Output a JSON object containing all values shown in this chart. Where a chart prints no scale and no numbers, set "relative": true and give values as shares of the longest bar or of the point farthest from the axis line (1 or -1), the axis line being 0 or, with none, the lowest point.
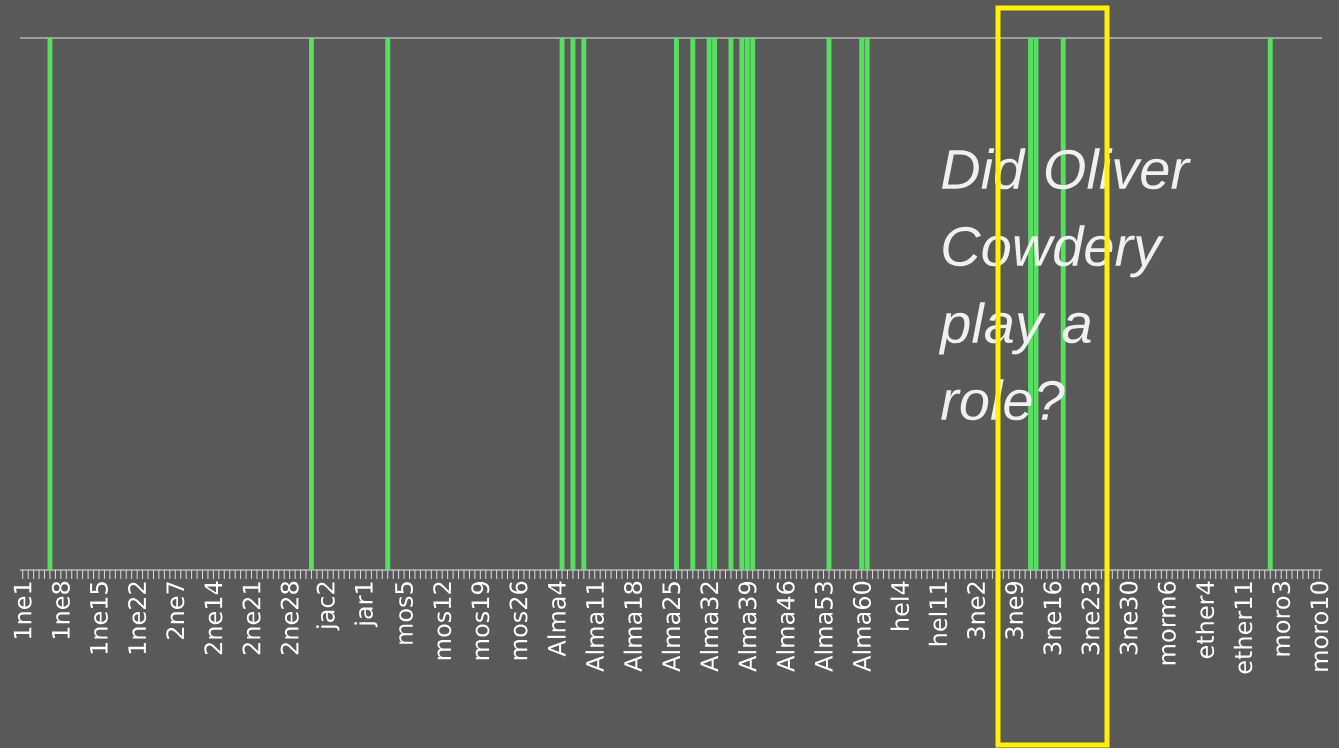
{
  "chart_data": {
    "type": "bar",
    "relative": true,
    "color": "#57e060",
    "categories": [
      "1ne1",
      null,
      null,
      null,
      null,
      null,
      null,
      "1ne8",
      null,
      null,
      null,
      null,
      null,
      null,
      "1ne15",
      null,
      null,
      null,
      null,
      null,
      null,
      "1ne22",
      null,
      null,
      null,
      null,
      null,
      null,
      "2ne7",
      null,
      null,
      null,
      null,
      null,
      null,
      "2ne14",
      null,
      null,
      null,
      null,
      null,
      null,
      "2ne21",
      null,
      null,
      null,
      null,
      null,
      null,
      "2ne28",
      null,
      null,
      null,
      null,
      null,
      null,
      "jac2",
      null,
      null,
      null,
      null,
      null,
      null,
      "jar1",
      null,
      null,
      null,
      null,
      null,
      null,
      "mos5",
      null,
      null,
      null,
      null,
      null,
      null,
      "mos12",
      null,
      null,
      null,
      null,
      null,
      null,
      "mos19",
      null,
      null,
      null,
      null,
      null,
      null,
      "mos26",
      null,
      null,
      null,
      null,
      null,
      null,
      "Alma4",
      null,
      null,
      null,
      null,
      null,
      null,
      "Alma11",
      null,
      null,
      null,
      null,
      null,
      null,
      "Alma18",
      null,
      null,
      null,
      null,
      null,
      null,
      "Alma25",
      null,
      null,
      null,
      null,
      null,
      null,
      "Alma32",
      null,
      null,
      null,
      null,
      null,
      null,
      "Alma39",
      null,
      null,
      null,
      null,
      null,
      null,
      "Alma46",
      null,
      null,
      null,
      null,
      null,
      null,
      "Alma53",
      null,
      null,
      null,
      null,
      null,
      null,
      "Alma60",
      null,
      null,
      null,
      null,
      null,
      null,
      "hel4",
      null,
      null,
      null,
      null,
      null,
      null,
      "hel11",
      null,
      null,
      null,
      null,
      null,
      null,
      "3ne2",
      null,
      null,
      null,
      null,
      null,
      null,
      "3ne9",
      null,
      null,
      null,
      null,
      null,
      null,
      "3ne16",
      null,
      null,
      null,
      null,
      null,
      null,
      "3ne23",
      null,
      null,
      null,
      null,
      null,
      null,
      "3ne30",
      null,
      null,
      null,
      null,
      null,
      null,
      "morm6",
      null,
      null,
      null,
      null,
      null,
      null,
      "ether4",
      null,
      null,
      null,
      null,
      null,
      null,
      "ether11",
      null,
      null,
      null,
      null,
      null,
      null,
      "moro3",
      null,
      null,
      null,
      null,
      null,
      null,
      "moro10"
    ],
    "values": [
      0,
      0,
      0,
      0,
      0,
      1,
      0,
      0,
      0,
      0,
      0,
      0,
      0,
      0,
      0,
      0,
      0,
      0,
      0,
      0,
      0,
      0,
      0,
      0,
      0,
      0,
      0,
      0,
      0,
      0,
      0,
      0,
      0,
      0,
      0,
      0,
      0,
      0,
      0,
      0,
      0,
      0,
      0,
      0,
      0,
      0,
      0,
      0,
      0,
      0,
      0,
      0,
      0,
      1,
      0,
      0,
      0,
      0,
      0,
      0,
      0,
      0,
      0,
      0,
      0,
      0,
      0,
      1,
      0,
      0,
      0,
      0,
      0,
      0,
      0,
      0,
      0,
      0,
      0,
      0,
      0,
      0,
      0,
      0,
      0,
      0,
      0,
      0,
      0,
      0,
      0,
      0,
      0,
      0,
      0,
      0,
      0,
      0,
      0,
      1,
      0,
      1,
      0,
      1,
      0,
      0,
      0,
      0,
      0,
      0,
      0,
      0,
      0,
      0,
      0,
      0,
      0,
      0,
      0,
      0,
      1,
      0,
      0,
      1,
      0,
      0,
      1,
      1,
      0,
      0,
      1,
      0,
      1,
      1,
      1,
      0,
      0,
      0,
      0,
      0,
      0,
      0,
      0,
      0,
      0,
      0,
      0,
      0,
      1,
      0,
      0,
      0,
      0,
      0,
      1,
      1,
      0,
      0,
      0,
      0,
      0,
      0,
      0,
      0,
      0,
      0,
      0,
      0,
      0,
      0,
      0,
      0,
      0,
      0,
      0,
      0,
      0,
      0,
      0,
      0,
      0,
      0,
      0,
      0,
      0,
      1,
      1,
      0,
      0,
      0,
      0,
      1,
      0,
      0,
      0,
      0,
      0,
      0,
      0,
      0,
      0,
      0,
      0,
      0,
      0,
      0,
      0,
      0,
      0,
      0,
      0,
      0,
      0,
      0,
      0,
      0,
      0,
      0,
      0,
      0,
      0,
      0,
      0,
      0,
      0,
      0,
      0,
      0,
      0,
      1,
      0,
      0,
      0,
      0,
      0,
      0,
      0,
      0,
      0
    ],
    "annotations": [
      "Did Oliver Cowdery play a role?"
    ]
  }
}
